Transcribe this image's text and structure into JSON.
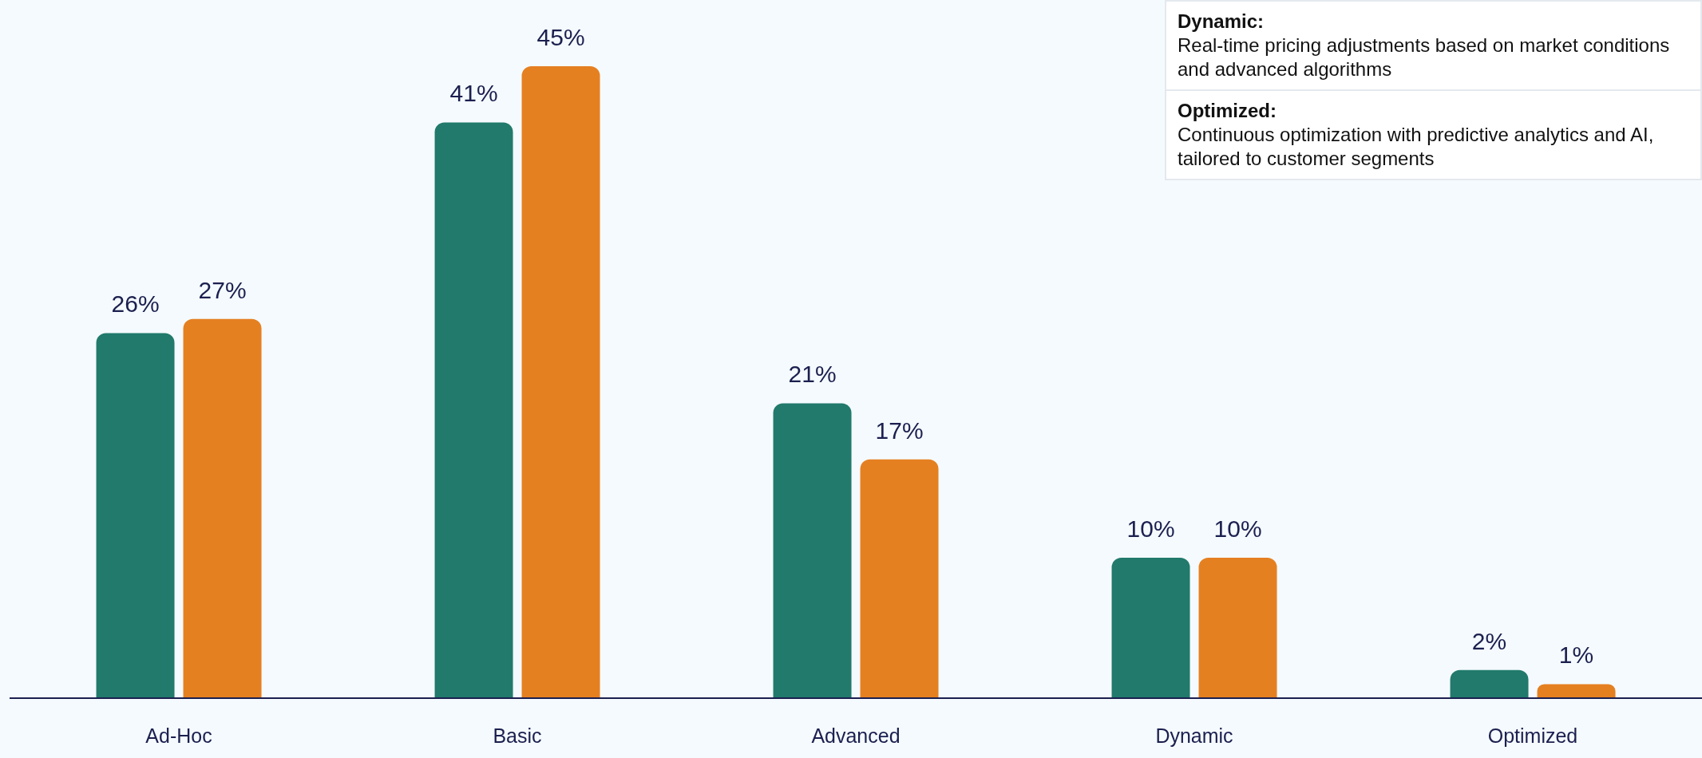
{
  "chart_data": {
    "type": "bar",
    "categories": [
      "Ad-Hoc",
      "Basic",
      "Advanced",
      "Dynamic",
      "Optimized"
    ],
    "series": [
      {
        "color": "#217a6b",
        "values": [
          26,
          41,
          21,
          10,
          2
        ],
        "value_labels": [
          "26%",
          "41%",
          "21%",
          "10%",
          "2%"
        ]
      },
      {
        "color": "#e58021",
        "values": [
          27,
          45,
          17,
          10,
          1
        ],
        "value_labels": [
          "27%",
          "45%",
          "17%",
          "10%",
          "1%"
        ]
      }
    ],
    "annotations": [
      "Dynamic:",
      "Real-time pricing adjustments based on market conditions and advanced algorithms",
      "Optimized:",
      "Continuous optimization with predictive analytics and AI, tailored to customer segments"
    ]
  }
}
